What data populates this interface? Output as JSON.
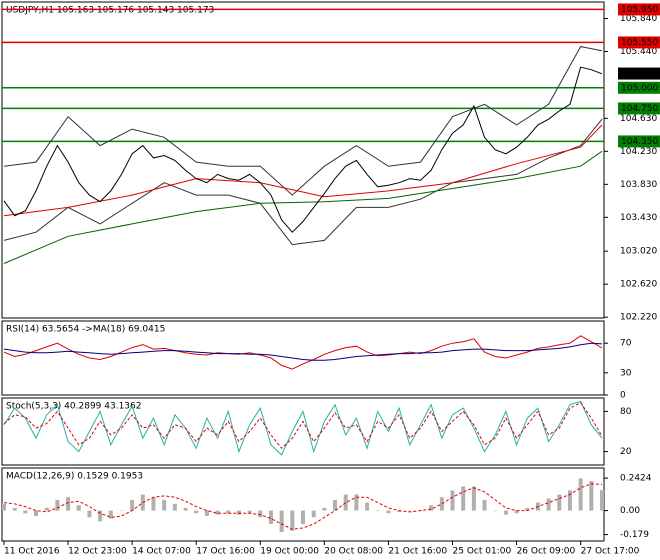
{
  "chart_data": [
    {
      "type": "line",
      "title": "USDJPY,H1  105.163 105.176 105.143 105.173",
      "ylim": [
        102.21,
        106.04
      ],
      "yticks": [
        {
          "value": 105.84,
          "label": "105.840"
        },
        {
          "value": 105.44,
          "label": "105.440"
        },
        {
          "value": 104.63,
          "label": "104.630"
        },
        {
          "value": 104.23,
          "label": "104.230"
        },
        {
          "value": 103.83,
          "label": "103.830"
        },
        {
          "value": 103.43,
          "label": "103.430"
        },
        {
          "value": 103.02,
          "label": "103.020"
        },
        {
          "value": 102.62,
          "label": "102.620"
        },
        {
          "value": 102.22,
          "label": "102.220"
        }
      ],
      "levels": [
        {
          "value": 105.95,
          "label": "105.950",
          "color": "#e00000"
        },
        {
          "value": 105.55,
          "label": "105.550",
          "color": "#e00000"
        },
        {
          "value": 105.0,
          "label": "105.000",
          "color": "#008000"
        },
        {
          "value": 104.75,
          "label": "104.750",
          "color": "#008000"
        },
        {
          "value": 104.35,
          "label": "104.350",
          "color": "#008000"
        }
      ],
      "price": {
        "value": 105.173,
        "color": "#000000"
      },
      "xlim": [
        0,
        56
      ],
      "series": [
        {
          "color": "#333333",
          "x": [
            0,
            3,
            6,
            9,
            12,
            15,
            18,
            21,
            24,
            27,
            30,
            33,
            36,
            39,
            42,
            45,
            48,
            51,
            54,
            56
          ],
          "values": [
            104.05,
            104.1,
            104.65,
            104.3,
            104.5,
            104.4,
            104.1,
            104.05,
            104.05,
            103.7,
            104.05,
            104.3,
            104.05,
            104.1,
            104.65,
            104.8,
            104.55,
            104.8,
            105.5,
            105.45
          ]
        },
        {
          "color": "#333333",
          "x": [
            0,
            3,
            6,
            9,
            12,
            15,
            18,
            21,
            24,
            27,
            30,
            33,
            36,
            39,
            42,
            45,
            48,
            51,
            54,
            56
          ],
          "values": [
            103.15,
            103.25,
            103.55,
            103.35,
            103.6,
            103.85,
            103.7,
            103.7,
            103.6,
            103.1,
            103.15,
            103.55,
            103.55,
            103.65,
            103.85,
            103.9,
            103.95,
            104.15,
            104.3,
            104.62
          ]
        },
        {
          "color": "#006400",
          "x": [
            0,
            6,
            12,
            18,
            24,
            30,
            36,
            42,
            48,
            54,
            56
          ],
          "values": [
            102.87,
            103.2,
            103.35,
            103.5,
            103.6,
            103.62,
            103.66,
            103.78,
            103.9,
            104.05,
            104.23
          ]
        },
        {
          "color": "#e00000",
          "x": [
            0,
            6,
            12,
            18,
            24,
            30,
            36,
            42,
            48,
            54,
            56
          ],
          "values": [
            103.45,
            103.55,
            103.7,
            103.9,
            103.85,
            103.68,
            103.75,
            103.85,
            104.08,
            104.28,
            104.55
          ]
        },
        {
          "color": "#000000",
          "values": [
            103.63,
            103.45,
            103.51,
            103.75,
            104.05,
            104.3,
            104.1,
            103.85,
            103.7,
            103.62,
            103.75,
            103.95,
            104.2,
            104.3,
            104.15,
            104.18,
            104.12,
            104.0,
            103.9,
            103.85,
            103.95,
            103.9,
            103.88,
            103.95,
            103.85,
            103.7,
            103.4,
            103.25,
            103.38,
            103.55,
            103.72,
            103.9,
            104.05,
            104.12,
            103.95,
            103.8,
            103.82,
            103.85,
            103.9,
            103.88,
            104.0,
            104.25,
            104.45,
            104.55,
            104.78,
            104.4,
            104.25,
            104.2,
            104.28,
            104.4,
            104.55,
            104.62,
            104.72,
            104.8,
            105.25,
            105.22,
            105.17
          ]
        }
      ]
    },
    {
      "type": "line",
      "title": "RSI(14) 63.5654  ->MA(18) 69.0415",
      "ylim": [
        0,
        100
      ],
      "yticks": [
        70,
        30,
        0
      ],
      "xlim": [
        0,
        56
      ],
      "series": [
        {
          "color": "#e00000",
          "values": [
            58,
            52,
            55,
            60,
            65,
            70,
            62,
            55,
            50,
            48,
            52,
            58,
            64,
            68,
            62,
            63,
            60,
            57,
            55,
            54,
            57,
            56,
            55,
            57,
            54,
            50,
            40,
            35,
            42,
            48,
            55,
            60,
            64,
            66,
            58,
            53,
            54,
            56,
            58,
            56,
            60,
            66,
            70,
            72,
            76,
            58,
            52,
            50,
            54,
            58,
            63,
            65,
            68,
            70,
            80,
            72,
            63.5654
          ]
        },
        {
          "color": "#000080",
          "values": [
            62,
            60,
            58,
            57,
            57,
            58,
            59,
            58,
            57,
            56,
            55,
            56,
            57,
            58,
            59,
            60,
            60,
            59,
            58,
            57,
            56,
            56,
            56,
            55,
            55,
            54,
            52,
            50,
            48,
            47,
            47,
            48,
            50,
            52,
            53,
            54,
            55,
            56,
            56,
            57,
            57,
            58,
            60,
            61,
            62,
            62,
            61,
            60,
            60,
            60,
            61,
            62,
            63,
            65,
            68,
            70,
            69.0415
          ]
        }
      ]
    },
    {
      "type": "line",
      "title": "Stoch(5,3,3) 40.2899 43.1362",
      "ylim": [
        0,
        100
      ],
      "yticks": [
        80,
        20
      ],
      "xlim": [
        0,
        56
      ],
      "series": [
        {
          "color": "#20b2aa",
          "values": [
            60,
            85,
            70,
            40,
            75,
            90,
            35,
            20,
            50,
            80,
            30,
            60,
            88,
            40,
            70,
            30,
            75,
            55,
            25,
            70,
            40,
            80,
            20,
            60,
            85,
            30,
            15,
            50,
            80,
            20,
            65,
            90,
            45,
            70,
            25,
            80,
            50,
            85,
            30,
            60,
            90,
            40,
            75,
            85,
            55,
            20,
            45,
            80,
            30,
            70,
            85,
            35,
            60,
            90,
            95,
            60,
            40.2899
          ]
        },
        {
          "color": "#e00000",
          "dash": true,
          "values": [
            62,
            75,
            72,
            55,
            62,
            80,
            55,
            30,
            40,
            65,
            45,
            55,
            75,
            55,
            60,
            40,
            60,
            55,
            35,
            55,
            45,
            65,
            35,
            50,
            70,
            45,
            25,
            40,
            65,
            35,
            55,
            78,
            55,
            60,
            35,
            65,
            55,
            75,
            40,
            55,
            80,
            50,
            65,
            80,
            60,
            30,
            40,
            70,
            40,
            60,
            80,
            45,
            55,
            85,
            93,
            70,
            43.1362
          ]
        }
      ]
    },
    {
      "type": "bar",
      "title": "MACD(12,26,9) 0.1529 0.1953",
      "ylim": [
        -0.227,
        0.318
      ],
      "yticks": [
        0.2424,
        {
          "value": 0,
          "label": "0.00"
        },
        -0.179
      ],
      "xlim": [
        0,
        56
      ],
      "xticks": [
        {
          "value": 0,
          "label": "11 Oct 2016"
        },
        {
          "value": 6,
          "label": "12 Oct 23:00"
        },
        {
          "value": 12,
          "label": "14 Oct 07:00"
        },
        {
          "value": 18,
          "label": "17 Oct 16:00"
        },
        {
          "value": 24,
          "label": "19 Oct 00:00"
        },
        {
          "value": 30,
          "label": "20 Oct 08:00"
        },
        {
          "value": 36,
          "label": "21 Oct 16:00"
        },
        {
          "value": 42,
          "label": "25 Oct 01:00"
        },
        {
          "value": 48,
          "label": "26 Oct 09:00"
        },
        {
          "value": 54,
          "label": "27 Oct 17:00"
        }
      ],
      "values": [
        0.05,
        0.02,
        -0.02,
        -0.04,
        0.02,
        0.08,
        0.1,
        0.04,
        -0.05,
        -0.08,
        -0.06,
        0.0,
        0.08,
        0.12,
        0.1,
        0.08,
        0.05,
        0.02,
        -0.02,
        -0.04,
        -0.03,
        -0.02,
        -0.03,
        -0.02,
        -0.05,
        -0.1,
        -0.16,
        -0.15,
        -0.1,
        -0.05,
        0.02,
        0.08,
        0.12,
        0.12,
        0.06,
        0.0,
        -0.02,
        -0.01,
        0.0,
        0.0,
        0.04,
        0.1,
        0.15,
        0.18,
        0.18,
        0.08,
        0.0,
        -0.03,
        -0.02,
        0.02,
        0.06,
        0.09,
        0.12,
        0.15,
        0.24,
        0.22,
        0.1529
      ],
      "color": "#b0b0b0",
      "series": [
        {
          "color": "#e00000",
          "dash": true,
          "values": [
            0.06,
            0.05,
            0.03,
            0.0,
            -0.01,
            0.02,
            0.06,
            0.07,
            0.03,
            -0.02,
            -0.05,
            -0.04,
            0.0,
            0.06,
            0.1,
            0.11,
            0.1,
            0.07,
            0.03,
            0.0,
            -0.02,
            -0.02,
            -0.02,
            -0.02,
            -0.03,
            -0.06,
            -0.1,
            -0.14,
            -0.13,
            -0.1,
            -0.05,
            0.0,
            0.06,
            0.1,
            0.1,
            0.06,
            0.02,
            0.0,
            -0.01,
            0.0,
            0.01,
            0.05,
            0.1,
            0.14,
            0.17,
            0.14,
            0.08,
            0.02,
            0.0,
            0.0,
            0.03,
            0.06,
            0.09,
            0.12,
            0.17,
            0.2,
            0.1953
          ]
        }
      ]
    }
  ]
}
